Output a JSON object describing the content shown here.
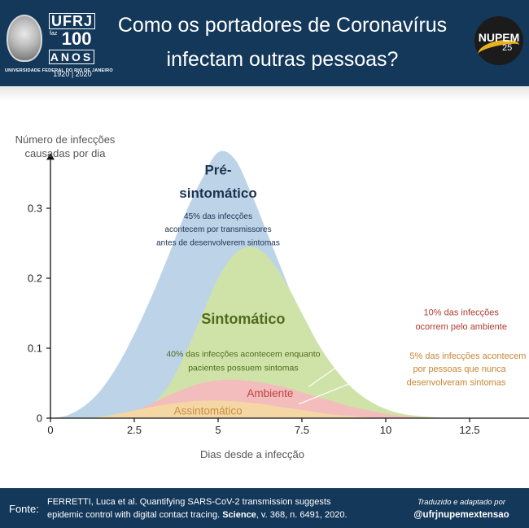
{
  "header": {
    "title_line1": "Como os portadores de Coronavírus",
    "title_line2": "infectam outras pessoas?",
    "ufrj_word": "UFRJ",
    "ufrj_faz": "faz",
    "ufrj_100": "100",
    "ufrj_anos": "ANOS",
    "ufrj_years": "1920 | 2020",
    "university_name": "UNIVERSIDADE FEDERAL DO RIO DE JANEIRO",
    "nupem_text": "NUPEM",
    "nupem_25": "25"
  },
  "chart_data": {
    "type": "area",
    "ylabel": "Número de infecções causadas por dia",
    "xlabel": "Dias desde a infecção",
    "xlim": [
      0,
      14.5
    ],
    "ylim": [
      0,
      0.36
    ],
    "xticks": [
      0,
      2.5,
      5,
      7.5,
      10,
      12.5
    ],
    "xtick_labels": [
      "0",
      "2.5",
      "5",
      "7.5",
      "10",
      "12.5"
    ],
    "yticks": [
      0,
      0.1,
      0.2,
      0.3
    ],
    "ytick_labels": [
      "0",
      "0.1",
      "0.2",
      "0.3"
    ],
    "series": [
      {
        "name": "Pré-sintomático",
        "color": "#bcd3e8",
        "x": [
          0,
          0.5,
          1,
          1.5,
          2,
          2.5,
          3,
          3.5,
          4,
          4.5,
          5,
          5.5,
          6,
          6.5,
          7,
          7.5,
          8,
          8.5,
          9,
          9.5,
          10,
          10.5,
          11,
          11.5,
          12
        ],
        "y": [
          0,
          0.004,
          0.017,
          0.04,
          0.075,
          0.12,
          0.172,
          0.23,
          0.29,
          0.34,
          0.38,
          0.37,
          0.32,
          0.26,
          0.2,
          0.14,
          0.09,
          0.055,
          0.032,
          0.017,
          0.009,
          0.004,
          0.002,
          0.001,
          0
        ]
      },
      {
        "name": "Sintomático",
        "color": "#cfe3a8",
        "x": [
          2,
          2.5,
          3,
          3.5,
          4,
          4.5,
          5,
          5.5,
          6,
          6.5,
          7,
          7.5,
          8,
          8.5,
          9,
          9.5,
          10,
          10.5,
          11,
          11.5,
          12
        ],
        "y": [
          0,
          0.005,
          0.018,
          0.045,
          0.09,
          0.145,
          0.2,
          0.235,
          0.245,
          0.23,
          0.195,
          0.15,
          0.105,
          0.07,
          0.043,
          0.025,
          0.013,
          0.006,
          0.003,
          0.001,
          0
        ]
      },
      {
        "name": "Ambiente",
        "color": "#f3bcbd",
        "x": [
          1.5,
          2,
          2.5,
          3,
          3.5,
          4,
          4.5,
          5,
          5.5,
          6,
          6.5,
          7,
          7.5,
          8,
          8.5,
          9,
          9.5,
          10,
          10.5,
          11,
          11.5
        ],
        "y": [
          0,
          0.003,
          0.01,
          0.02,
          0.032,
          0.042,
          0.05,
          0.054,
          0.055,
          0.053,
          0.049,
          0.044,
          0.037,
          0.03,
          0.023,
          0.016,
          0.011,
          0.006,
          0.003,
          0.001,
          0
        ]
      },
      {
        "name": "Assintomático",
        "color": "#f5d7a5",
        "x": [
          1,
          1.5,
          2,
          2.5,
          3,
          3.5,
          4,
          4.5,
          5,
          5.5,
          6,
          6.5,
          7,
          7.5,
          8,
          8.5,
          9,
          9.5,
          10,
          10.5
        ],
        "y": [
          0,
          0.002,
          0.006,
          0.011,
          0.016,
          0.02,
          0.023,
          0.025,
          0.025,
          0.024,
          0.022,
          0.019,
          0.015,
          0.012,
          0.008,
          0.005,
          0.003,
          0.001,
          0.0005,
          0
        ]
      }
    ],
    "annotations": [
      {
        "text": "Pré-",
        "color": "#1c3350",
        "size": 17,
        "bold": true,
        "x": 5,
        "y": 0.348
      },
      {
        "text": "sintomático",
        "color": "#1c3350",
        "size": 17,
        "bold": true,
        "x": 5,
        "y": 0.315
      },
      {
        "text": "45% das infecções",
        "color": "#1c3350",
        "size": 10,
        "x": 5,
        "y": 0.285
      },
      {
        "text": "acontecem por transmissores",
        "color": "#1c3350",
        "size": 10,
        "x": 5,
        "y": 0.266
      },
      {
        "text": "antes de desenvolverem sintomas",
        "color": "#1c3350",
        "size": 10,
        "x": 5,
        "y": 0.247
      },
      {
        "text": "Sintomático",
        "color": "#4e6b20",
        "size": 18,
        "bold": true,
        "x": 5.75,
        "y": 0.135
      },
      {
        "text": "40% das infecções acontecem enquanto",
        "color": "#4e6b20",
        "size": 10.5,
        "x": 5.75,
        "y": 0.088
      },
      {
        "text": "pacientes possuem sintomas",
        "color": "#4e6b20",
        "size": 10.5,
        "x": 5.75,
        "y": 0.068
      },
      {
        "text": "Ambiente",
        "color": "#c2443f",
        "size": 13.5,
        "x": 6.55,
        "y": 0.03
      },
      {
        "text": "Assintomático",
        "color": "#c98f3e",
        "size": 13.5,
        "x": 4.7,
        "y": 0.005
      },
      {
        "text": "10% das infecções",
        "color": "#b03a31",
        "size": 11,
        "x": 12.25,
        "y": 0.147
      },
      {
        "text": "ocorrem pelo ambiente",
        "color": "#b03a31",
        "size": 11,
        "x": 12.25,
        "y": 0.127
      },
      {
        "text": "5% das infecções acontecem",
        "color": "#c98634",
        "size": 11,
        "x": 12.45,
        "y": 0.085
      },
      {
        "text": "por pessoas que nunca",
        "color": "#c98634",
        "size": 11,
        "x": 12.2,
        "y": 0.066
      },
      {
        "text": "desenvolveram sintomas",
        "color": "#c98634",
        "size": 11,
        "x": 12.1,
        "y": 0.047
      }
    ],
    "pointer_lines": [
      {
        "from": [
          7.7,
          0.045
        ],
        "to": [
          10.4,
          0.135
        ]
      },
      {
        "from": [
          7.4,
          0.02
        ],
        "to": [
          10.4,
          0.078
        ]
      }
    ],
    "grid": false,
    "legend": "none"
  },
  "footer": {
    "fonte_label": "Fonte:",
    "source_line1": "FERRETTI, Luca et al. Quantifying SARS-CoV-2 transmission suggests",
    "source_line2_start": "epidemic control with digital contact tracing. ",
    "source_journal": "Science",
    "source_line2_end": ", v. 368, n. 6491, 2020.",
    "credit": "Traduzido e adaptado por",
    "handle": "@ufrjnupemextensao"
  }
}
